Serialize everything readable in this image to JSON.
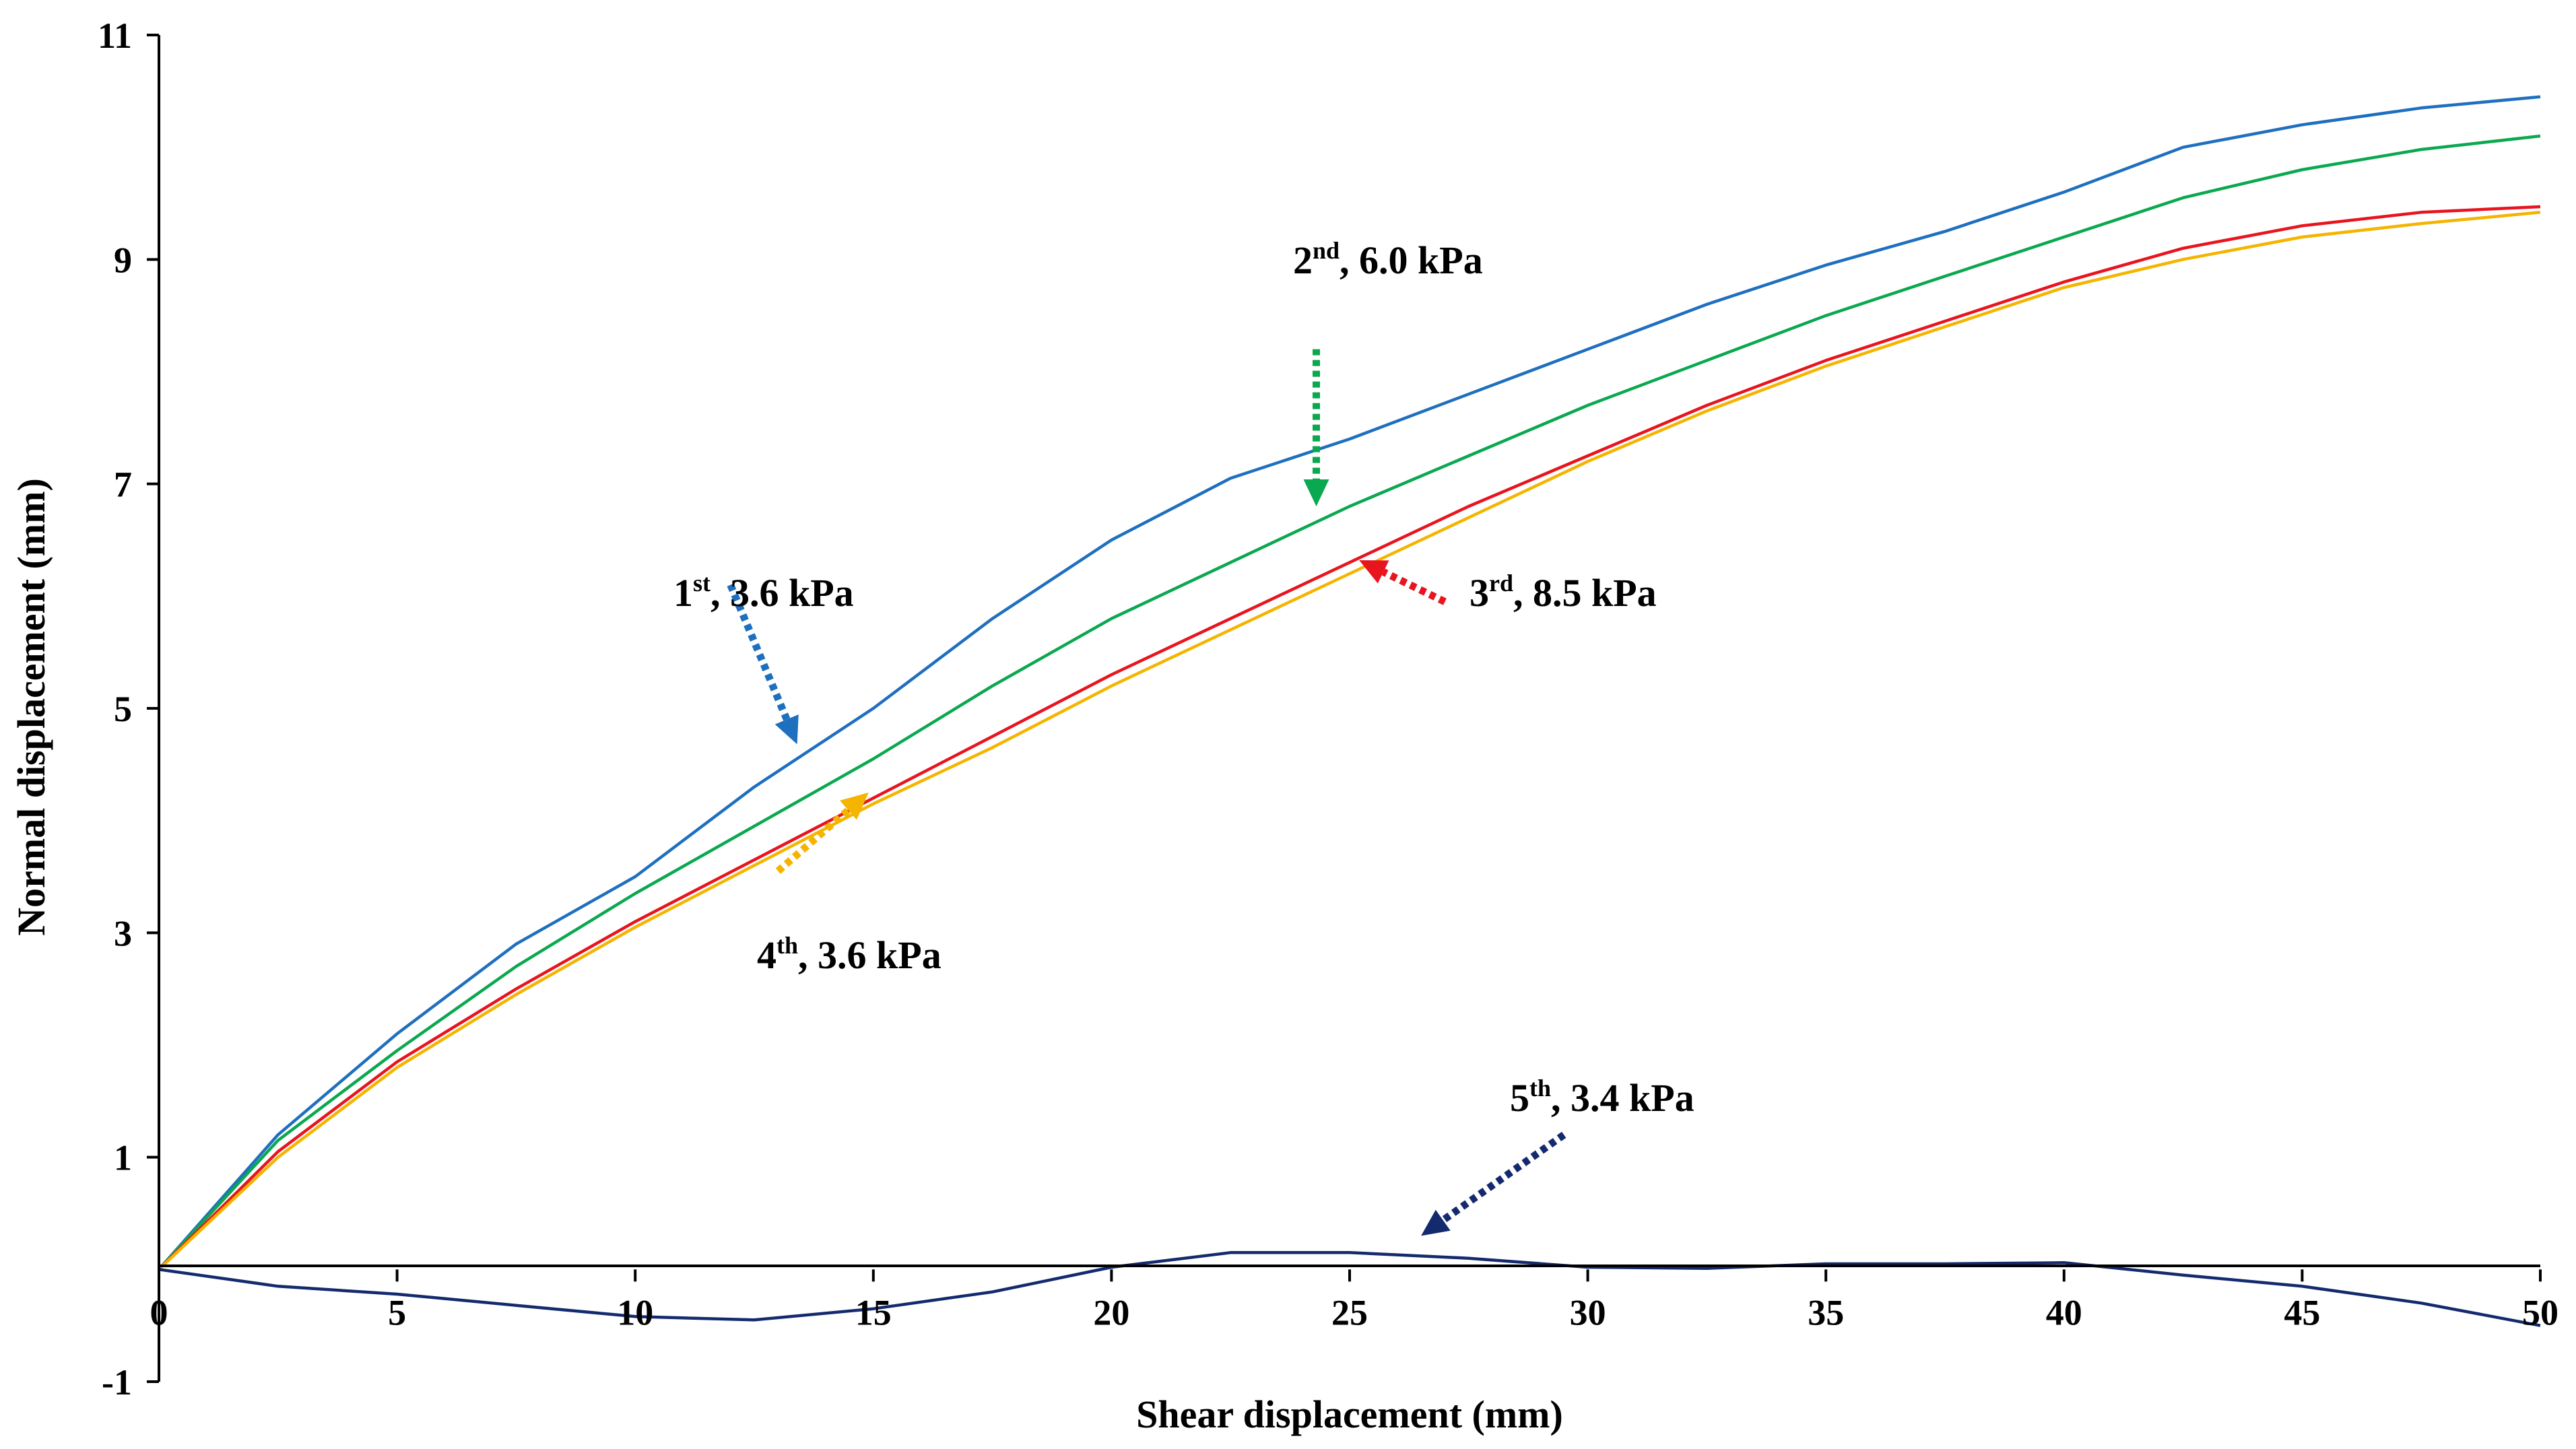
{
  "chart_data": {
    "type": "line",
    "title": "",
    "xlabel": "Shear displacement (mm)",
    "ylabel": "Normal displacement (mm)",
    "xlim": [
      0,
      50
    ],
    "ylim": [
      -1,
      11
    ],
    "xticks": [
      0,
      5,
      10,
      15,
      20,
      25,
      30,
      35,
      40,
      45,
      50
    ],
    "yticks": [
      -1,
      1,
      3,
      5,
      7,
      9,
      11
    ],
    "xtick_labels": [
      "0",
      "5",
      "10",
      "15",
      "20",
      "25",
      "30",
      "35",
      "40",
      "45",
      "50"
    ],
    "ytick_labels": [
      "-1",
      "1",
      "3",
      "5",
      "7",
      "9",
      "11"
    ],
    "grid": false,
    "series": [
      {
        "name": "1st, 3.6 kPa",
        "color": "#1f6fbf",
        "x": [
          0,
          2.5,
          5,
          7.5,
          10,
          12.5,
          15,
          17.5,
          20,
          22.5,
          25,
          27.5,
          30,
          32.5,
          35,
          37.5,
          40,
          42.5,
          45,
          47.5,
          50
        ],
        "y": [
          0,
          1.2,
          2.1,
          2.9,
          3.5,
          4.3,
          5.0,
          5.8,
          6.5,
          7.05,
          7.4,
          7.8,
          8.2,
          8.6,
          8.95,
          9.25,
          9.6,
          10.0,
          10.2,
          10.35,
          10.45
        ]
      },
      {
        "name": "2nd, 6.0 kPa",
        "color": "#0aa84f",
        "x": [
          0,
          2.5,
          5,
          7.5,
          10,
          12.5,
          15,
          17.5,
          20,
          22.5,
          25,
          27.5,
          30,
          32.5,
          35,
          37.5,
          40,
          42.5,
          45,
          47.5,
          50
        ],
        "y": [
          0,
          1.15,
          1.95,
          2.7,
          3.35,
          3.95,
          4.55,
          5.2,
          5.8,
          6.3,
          6.8,
          7.25,
          7.7,
          8.1,
          8.5,
          8.85,
          9.2,
          9.55,
          9.8,
          9.98,
          10.1
        ]
      },
      {
        "name": "3rd, 8.5 kPa",
        "color": "#e8141e",
        "x": [
          0,
          2.5,
          5,
          7.5,
          10,
          12.5,
          15,
          17.5,
          20,
          22.5,
          25,
          27.5,
          30,
          32.5,
          35,
          37.5,
          40,
          42.5,
          45,
          47.5,
          50
        ],
        "y": [
          0,
          1.05,
          1.85,
          2.5,
          3.1,
          3.65,
          4.2,
          4.75,
          5.3,
          5.8,
          6.3,
          6.8,
          7.25,
          7.7,
          8.1,
          8.45,
          8.8,
          9.1,
          9.3,
          9.42,
          9.47
        ]
      },
      {
        "name": "4th, 3.6 kPa",
        "color": "#f5b400",
        "x": [
          0,
          2.5,
          5,
          7.5,
          10,
          12.5,
          15,
          17.5,
          20,
          22.5,
          25,
          27.5,
          30,
          32.5,
          35,
          37.5,
          40,
          42.5,
          45,
          47.5,
          50
        ],
        "y": [
          0,
          1.0,
          1.8,
          2.45,
          3.05,
          3.6,
          4.15,
          4.65,
          5.2,
          5.7,
          6.2,
          6.7,
          7.2,
          7.65,
          8.05,
          8.4,
          8.75,
          9.0,
          9.2,
          9.32,
          9.42
        ]
      },
      {
        "name": "5th, 3.4 kPa",
        "color": "#142a6e",
        "x": [
          0,
          2.5,
          5,
          7.5,
          10,
          12.5,
          15,
          17.5,
          20,
          22.5,
          25,
          27.5,
          30,
          32.5,
          35,
          37.5,
          40,
          42.5,
          45,
          47.5,
          50
        ],
        "y": [
          0,
          -0.15,
          -0.22,
          -0.32,
          -0.42,
          -0.45,
          -0.35,
          -0.2,
          0.02,
          0.15,
          0.15,
          0.1,
          0.02,
          0.01,
          0.05,
          0.05,
          0.06,
          -0.05,
          -0.15,
          -0.3,
          -0.5
        ]
      }
    ],
    "annotations": [
      {
        "base": "1",
        "sup": "st",
        "rest": ", 3.6 kPa",
        "color": "#1f6fbf",
        "from": [
          12.0,
          6.1
        ],
        "to": [
          13.4,
          4.68
        ]
      },
      {
        "base": "2",
        "sup": "nd",
        "rest": ", 6.0 kPa",
        "color": "#0aa84f",
        "from": [
          24.3,
          8.2
        ],
        "to": [
          24.3,
          6.8
        ]
      },
      {
        "base": "3",
        "sup": "rd",
        "rest": ", 8.5 kPa",
        "color": "#e8141e",
        "from": [
          27.0,
          5.95
        ],
        "to": [
          25.2,
          6.32
        ]
      },
      {
        "base": "4",
        "sup": "th",
        "rest": ", 3.6 kPa",
        "color": "#f5b400",
        "from": [
          13.0,
          3.55
        ],
        "to": [
          14.9,
          4.25
        ]
      },
      {
        "base": "5",
        "sup": "th",
        "rest": ", 3.4 kPa",
        "color": "#142a6e",
        "from": [
          29.5,
          1.2
        ],
        "to": [
          26.5,
          0.3
        ]
      }
    ]
  }
}
